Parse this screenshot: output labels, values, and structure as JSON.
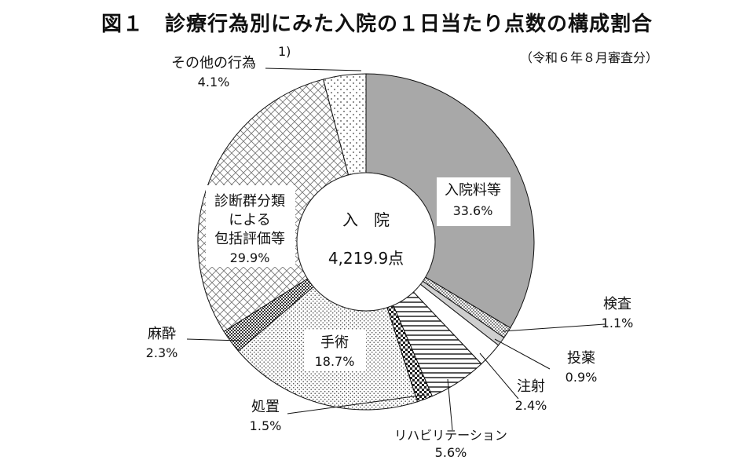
{
  "title": "図１　診療行為別にみた入院の１日当たり点数の構成割合",
  "subtitle": "（令和６年８月審査分）",
  "center": {
    "label": "入　院",
    "total": "4,219.9点"
  },
  "note_marker": "1)",
  "chart_data": {
    "type": "pie",
    "donut": true,
    "start": "12 o'clock, clockwise",
    "slices": [
      {
        "id": "nyuin",
        "label": "入院料等",
        "percent_text": "33.6%",
        "value": 33.6,
        "pattern": "gray"
      },
      {
        "id": "kensa",
        "label": "検査",
        "percent_text": "1.1%",
        "value": 1.1,
        "pattern": "dots-dense"
      },
      {
        "id": "toyaku",
        "label": "投薬",
        "percent_text": "0.9%",
        "value": 0.9,
        "pattern": "light-gray"
      },
      {
        "id": "chusha",
        "label": "注射",
        "percent_text": "2.4%",
        "value": 2.4,
        "pattern": "white"
      },
      {
        "id": "reha",
        "label": "リハビリテーション",
        "percent_text": "5.6%",
        "value": 5.6,
        "pattern": "horizontal"
      },
      {
        "id": "shochi",
        "label": "処置",
        "percent_text": "1.5%",
        "value": 1.5,
        "pattern": "checker"
      },
      {
        "id": "shujutsu",
        "label": "手術",
        "percent_text": "18.7%",
        "value": 18.7,
        "pattern": "fine-dots"
      },
      {
        "id": "masui",
        "label": "麻酔",
        "percent_text": "2.3%",
        "value": 2.3,
        "pattern": "dark-checker"
      },
      {
        "id": "dpc",
        "label": "診断群分類による包括評価等",
        "label_lines": [
          "診断群分類",
          "による",
          "包括評価等"
        ],
        "percent_text": "29.9%",
        "value": 29.9,
        "pattern": "crosshatch"
      },
      {
        "id": "other",
        "label": "その他の行為",
        "percent_text": "4.1%",
        "value": 4.1,
        "pattern": "sparse-dots"
      }
    ]
  }
}
